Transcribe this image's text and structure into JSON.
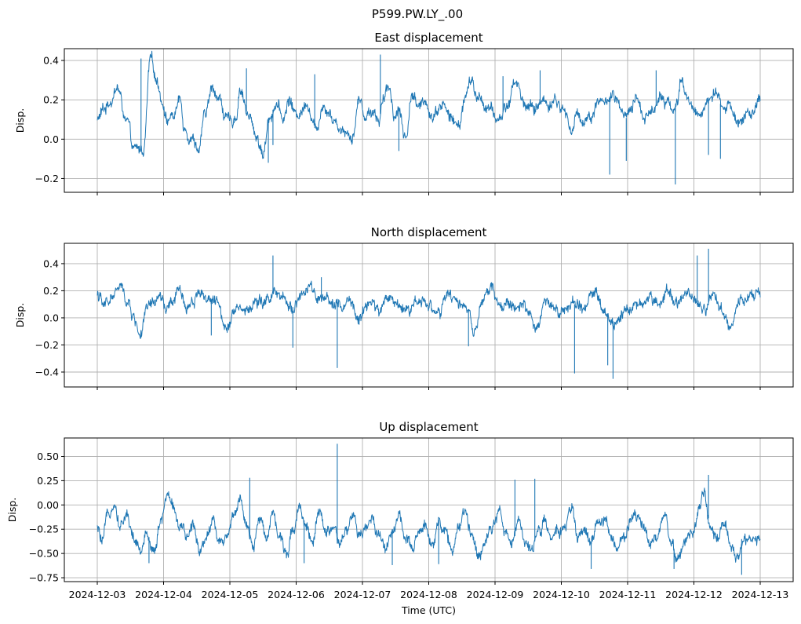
{
  "figure": {
    "suptitle": "P599.PW.LY_.00",
    "xlabel": "Time (UTC)",
    "line_color": "#1f77b4"
  },
  "chart_data": [
    {
      "type": "line",
      "title": "East displacement",
      "ylabel": "Disp.",
      "xlabel": "",
      "x_tick_labels_visible": false,
      "grid": true,
      "xlim": [
        0,
        10
      ],
      "ylim": [
        -0.27,
        0.46
      ],
      "yticks": [
        -0.2,
        0.0,
        0.2,
        0.4
      ],
      "ytick_labels": [
        "−0.2",
        "0.0",
        "0.2",
        "0.4"
      ],
      "x_days": [
        "2024-12-03",
        "2024-12-04",
        "2024-12-05",
        "2024-12-06",
        "2024-12-07",
        "2024-12-08",
        "2024-12-09",
        "2024-12-10",
        "2024-12-11",
        "2024-12-12",
        "2024-12-13"
      ],
      "series": [
        {
          "name": "East",
          "x": [
            0.0,
            0.1,
            0.2,
            0.3,
            0.45,
            0.55,
            0.7,
            0.8,
            0.9,
            1.0,
            1.05,
            1.15,
            1.25,
            1.3,
            1.4,
            1.55,
            1.6,
            1.75,
            1.85,
            1.95,
            2.0,
            2.1,
            2.15,
            2.3,
            2.4,
            2.5,
            2.6,
            2.7,
            2.8,
            2.9,
            3.0,
            3.1,
            3.15,
            3.3,
            3.4,
            3.5,
            3.55,
            3.7,
            3.85,
            3.95,
            4.05,
            4.15,
            4.25,
            4.3,
            4.4,
            4.5,
            4.55,
            4.65,
            4.75,
            4.85,
            4.95,
            5.05,
            5.2,
            5.35,
            5.45,
            5.55,
            5.65,
            5.7,
            5.8,
            5.9,
            6.05,
            6.2,
            6.3,
            6.45,
            6.6,
            6.7,
            6.8,
            6.9,
            7.05,
            7.15,
            7.25,
            7.35,
            7.45,
            7.55,
            7.65,
            7.75,
            7.85,
            7.95,
            8.05,
            8.15,
            8.25,
            8.4,
            8.5,
            8.6,
            8.7,
            8.75,
            8.8,
            8.9,
            9.0,
            9.1,
            9.2,
            9.3,
            9.4,
            9.55,
            9.7,
            9.85,
            10.0
          ],
          "y": [
            0.1,
            0.15,
            0.2,
            0.26,
            0.08,
            -0.06,
            -0.05,
            0.4,
            0.3,
            0.18,
            0.1,
            0.12,
            0.2,
            0.08,
            0.02,
            -0.05,
            0.1,
            0.26,
            0.2,
            0.1,
            0.08,
            0.12,
            0.26,
            0.1,
            0.02,
            -0.08,
            0.12,
            0.18,
            0.1,
            0.2,
            0.12,
            0.15,
            0.2,
            0.05,
            0.18,
            0.15,
            0.1,
            0.05,
            0.02,
            0.2,
            0.12,
            0.15,
            0.1,
            0.18,
            0.26,
            0.12,
            0.16,
            0.0,
            0.24,
            0.15,
            0.2,
            0.12,
            0.18,
            0.1,
            0.06,
            0.22,
            0.3,
            0.22,
            0.2,
            0.15,
            0.1,
            0.18,
            0.3,
            0.18,
            0.15,
            0.2,
            0.18,
            0.2,
            0.14,
            0.05,
            0.12,
            0.1,
            0.12,
            0.2,
            0.18,
            0.22,
            0.18,
            0.1,
            0.14,
            0.2,
            0.12,
            0.15,
            0.25,
            0.18,
            0.16,
            0.18,
            0.3,
            0.2,
            0.15,
            0.12,
            0.2,
            0.22,
            0.18,
            0.15,
            0.1,
            0.12,
            0.18
          ]
        }
      ],
      "spikes": [
        {
          "x": 0.66,
          "y": 0.41
        },
        {
          "x": 4.27,
          "y": 0.43
        },
        {
          "x": 3.28,
          "y": 0.33
        },
        {
          "x": 2.58,
          "y": -0.12
        },
        {
          "x": 2.65,
          "y": -0.03
        },
        {
          "x": 7.73,
          "y": -0.18
        },
        {
          "x": 7.98,
          "y": -0.11
        },
        {
          "x": 8.72,
          "y": -0.23
        },
        {
          "x": 9.4,
          "y": -0.1
        },
        {
          "x": 8.43,
          "y": 0.35
        },
        {
          "x": 6.68,
          "y": 0.35
        },
        {
          "x": 2.25,
          "y": 0.36
        },
        {
          "x": 6.12,
          "y": 0.32
        },
        {
          "x": 4.55,
          "y": -0.06
        },
        {
          "x": 9.22,
          "y": -0.08
        }
      ]
    },
    {
      "type": "line",
      "title": "North displacement",
      "ylabel": "Disp.",
      "xlabel": "",
      "x_tick_labels_visible": false,
      "grid": true,
      "xlim": [
        0,
        10
      ],
      "ylim": [
        -0.51,
        0.55
      ],
      "yticks": [
        -0.4,
        -0.2,
        0.0,
        0.2,
        0.4
      ],
      "ytick_labels": [
        "−0.4",
        "−0.2",
        "0.0",
        "0.2",
        "0.4"
      ],
      "x_days": [
        "2024-12-03",
        "2024-12-04",
        "2024-12-05",
        "2024-12-06",
        "2024-12-07",
        "2024-12-08",
        "2024-12-09",
        "2024-12-10",
        "2024-12-11",
        "2024-12-12",
        "2024-12-13"
      ],
      "series": [
        {
          "name": "North",
          "x": [
            0.0,
            0.1,
            0.2,
            0.35,
            0.45,
            0.55,
            0.65,
            0.75,
            0.85,
            0.95,
            1.05,
            1.15,
            1.25,
            1.35,
            1.45,
            1.55,
            1.65,
            1.8,
            1.95,
            2.1,
            2.25,
            2.4,
            2.5,
            2.65,
            2.8,
            2.95,
            3.05,
            3.2,
            3.35,
            3.5,
            3.6,
            3.7,
            3.8,
            3.95,
            4.1,
            4.25,
            4.4,
            4.55,
            4.7,
            4.85,
            5.0,
            5.15,
            5.3,
            5.45,
            5.6,
            5.7,
            5.8,
            5.95,
            6.1,
            6.25,
            6.4,
            6.55,
            6.65,
            6.75,
            6.9,
            7.05,
            7.2,
            7.35,
            7.5,
            7.65,
            7.75,
            7.85,
            8.0,
            8.15,
            8.3,
            8.45,
            8.6,
            8.75,
            8.9,
            9.05,
            9.15,
            9.3,
            9.45,
            9.55,
            9.7,
            9.85,
            10.0
          ],
          "y": [
            0.18,
            0.08,
            0.15,
            0.22,
            0.12,
            0.0,
            -0.12,
            0.05,
            0.1,
            0.15,
            0.05,
            0.12,
            0.2,
            0.08,
            0.14,
            0.2,
            0.15,
            0.1,
            -0.05,
            0.1,
            0.05,
            0.12,
            0.1,
            0.18,
            0.12,
            0.08,
            0.15,
            0.22,
            0.12,
            0.1,
            0.15,
            0.05,
            0.12,
            -0.02,
            0.12,
            0.05,
            0.15,
            0.1,
            0.06,
            0.15,
            0.1,
            0.04,
            0.15,
            0.12,
            0.06,
            -0.15,
            0.12,
            0.2,
            0.08,
            0.1,
            0.08,
            0.02,
            -0.12,
            0.15,
            0.1,
            0.05,
            0.1,
            0.08,
            0.2,
            0.05,
            -0.05,
            0.0,
            0.1,
            0.08,
            0.15,
            0.12,
            0.2,
            0.15,
            0.18,
            0.12,
            0.08,
            0.15,
            0.05,
            -0.08,
            0.15,
            0.18,
            0.2
          ]
        }
      ],
      "spikes": [
        {
          "x": 2.65,
          "y": 0.46
        },
        {
          "x": 2.95,
          "y": -0.22
        },
        {
          "x": 3.62,
          "y": -0.37
        },
        {
          "x": 7.2,
          "y": -0.41
        },
        {
          "x": 7.7,
          "y": -0.35
        },
        {
          "x": 7.78,
          "y": -0.45
        },
        {
          "x": 9.05,
          "y": 0.46
        },
        {
          "x": 9.22,
          "y": 0.51
        },
        {
          "x": 3.95,
          "y": -0.05
        },
        {
          "x": 1.72,
          "y": -0.13
        },
        {
          "x": 5.6,
          "y": -0.21
        },
        {
          "x": 3.38,
          "y": 0.3
        }
      ]
    },
    {
      "type": "line",
      "title": "Up displacement",
      "ylabel": "Disp.",
      "xlabel": "Time (UTC)",
      "x_tick_labels_visible": true,
      "grid": true,
      "xlim": [
        0,
        10
      ],
      "ylim": [
        -0.79,
        0.69
      ],
      "yticks": [
        -0.75,
        -0.5,
        -0.25,
        0.0,
        0.25,
        0.5
      ],
      "ytick_labels": [
        "−0.75",
        "−0.50",
        "−0.25",
        "0.00",
        "0.25",
        "0.50"
      ],
      "x_days": [
        "2024-12-03",
        "2024-12-04",
        "2024-12-05",
        "2024-12-06",
        "2024-12-07",
        "2024-12-08",
        "2024-12-09",
        "2024-12-10",
        "2024-12-11",
        "2024-12-12",
        "2024-12-13"
      ],
      "series": [
        {
          "name": "Up",
          "x": [
            0.0,
            0.08,
            0.15,
            0.25,
            0.35,
            0.45,
            0.55,
            0.65,
            0.75,
            0.85,
            0.95,
            1.05,
            1.15,
            1.25,
            1.35,
            1.45,
            1.55,
            1.65,
            1.75,
            1.85,
            1.95,
            2.05,
            2.15,
            2.25,
            2.35,
            2.45,
            2.55,
            2.65,
            2.75,
            2.85,
            2.95,
            3.05,
            3.15,
            3.25,
            3.35,
            3.45,
            3.55,
            3.65,
            3.75,
            3.85,
            3.95,
            4.05,
            4.15,
            4.25,
            4.35,
            4.45,
            4.55,
            4.65,
            4.75,
            4.85,
            4.95,
            5.05,
            5.15,
            5.25,
            5.35,
            5.45,
            5.55,
            5.65,
            5.75,
            5.85,
            5.95,
            6.05,
            6.15,
            6.25,
            6.35,
            6.45,
            6.55,
            6.65,
            6.75,
            6.85,
            6.95,
            7.05,
            7.15,
            7.25,
            7.35,
            7.45,
            7.55,
            7.65,
            7.75,
            7.85,
            7.95,
            8.05,
            8.15,
            8.25,
            8.35,
            8.45,
            8.55,
            8.65,
            8.75,
            8.85,
            8.95,
            9.05,
            9.15,
            9.25,
            9.35,
            9.45,
            9.55,
            9.65,
            9.75,
            9.85,
            10.0
          ],
          "y": [
            -0.25,
            -0.4,
            -0.15,
            0.05,
            -0.2,
            -0.1,
            -0.35,
            -0.5,
            -0.3,
            -0.45,
            -0.2,
            0.1,
            0.0,
            -0.25,
            -0.35,
            -0.2,
            -0.45,
            -0.3,
            -0.15,
            -0.4,
            -0.3,
            -0.1,
            0.05,
            -0.25,
            -0.45,
            -0.15,
            -0.3,
            -0.05,
            -0.35,
            -0.5,
            -0.25,
            0.0,
            -0.2,
            -0.4,
            -0.1,
            -0.3,
            -0.2,
            -0.45,
            -0.3,
            -0.1,
            -0.35,
            -0.25,
            -0.15,
            -0.3,
            -0.45,
            -0.25,
            -0.1,
            -0.35,
            -0.5,
            -0.3,
            -0.2,
            -0.4,
            -0.15,
            -0.3,
            -0.45,
            -0.25,
            -0.1,
            -0.3,
            -0.5,
            -0.35,
            -0.2,
            -0.05,
            -0.3,
            -0.4,
            -0.15,
            -0.35,
            -0.5,
            -0.25,
            -0.15,
            -0.4,
            -0.3,
            -0.2,
            -0.05,
            -0.35,
            -0.25,
            -0.4,
            -0.2,
            -0.1,
            -0.35,
            -0.5,
            -0.3,
            -0.15,
            -0.05,
            -0.25,
            -0.4,
            -0.3,
            -0.1,
            -0.35,
            -0.55,
            -0.45,
            -0.3,
            -0.15,
            0.1,
            -0.2,
            -0.35,
            -0.2,
            -0.45,
            -0.55,
            -0.3,
            -0.4,
            -0.35
          ]
        }
      ],
      "spikes": [
        {
          "x": 3.62,
          "y": 0.63
        },
        {
          "x": 2.3,
          "y": 0.28
        },
        {
          "x": 6.3,
          "y": 0.26
        },
        {
          "x": 6.6,
          "y": 0.27
        },
        {
          "x": 9.22,
          "y": 0.31
        },
        {
          "x": 4.45,
          "y": -0.62
        },
        {
          "x": 7.45,
          "y": -0.66
        },
        {
          "x": 9.72,
          "y": -0.72
        },
        {
          "x": 0.78,
          "y": -0.6
        },
        {
          "x": 3.12,
          "y": -0.6
        },
        {
          "x": 5.15,
          "y": -0.61
        },
        {
          "x": 8.7,
          "y": -0.66
        }
      ]
    }
  ]
}
